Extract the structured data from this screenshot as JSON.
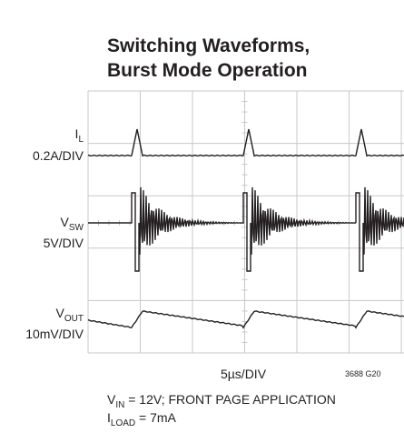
{
  "title": [
    "Switching Waveforms,",
    "Burst Mode Operation"
  ],
  "channels": [
    {
      "main": "I",
      "sub": "L",
      "scale": "0.2A/DIV"
    },
    {
      "main": "V",
      "sub": "SW",
      "scale": "5V/DIV"
    },
    {
      "main": "V",
      "sub": "OUT",
      "scale": "10mV/DIV"
    }
  ],
  "x_label": "5µs/DIV",
  "figure_id": "3688 G20",
  "notes": [
    {
      "main": "V",
      "sub": "IN",
      "rest": " = 12V; FRONT PAGE APPLICATION"
    },
    {
      "main": "I",
      "sub": "LOAD",
      "rest": " = 7mA"
    }
  ]
}
